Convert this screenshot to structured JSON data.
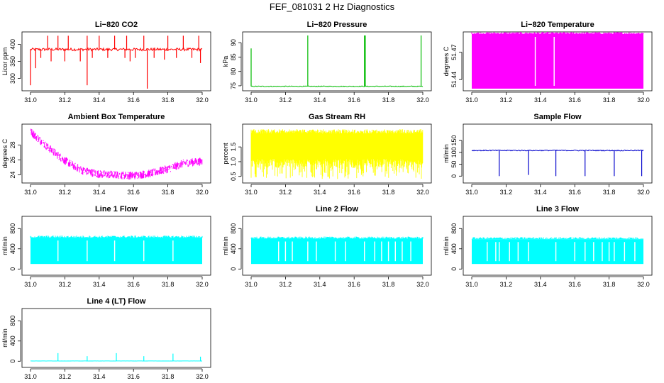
{
  "figure_title": "FEF_081031  2 Hz Diagnostics",
  "chart_data": [
    {
      "type": "line",
      "title": "Li−820 CO2",
      "ylabel": "Licor ppm",
      "color": "#ff0000",
      "xlim": [
        31.0,
        32.0
      ],
      "ylim": [
        270,
        430
      ],
      "xticks": [
        31.0,
        31.2,
        31.4,
        31.6,
        31.8,
        32.0
      ],
      "xtick_labels": [
        "31.0",
        "31.2",
        "31.4",
        "31.6",
        "31.8",
        "32.0"
      ],
      "yticks": [
        300,
        350,
        400
      ],
      "ytick_labels": [
        "300",
        "350",
        "400"
      ],
      "baseline": 385,
      "noise": 4,
      "spikes": [
        [
          31.0,
          280
        ],
        [
          31.03,
          330
        ],
        [
          31.06,
          360
        ],
        [
          31.1,
          425
        ],
        [
          31.12,
          350
        ],
        [
          31.16,
          425
        ],
        [
          31.2,
          350
        ],
        [
          31.22,
          425
        ],
        [
          31.29,
          350
        ],
        [
          31.33,
          425
        ],
        [
          31.33,
          280
        ],
        [
          31.36,
          360
        ],
        [
          31.4,
          425
        ],
        [
          31.45,
          360
        ],
        [
          31.49,
          425
        ],
        [
          31.55,
          360
        ],
        [
          31.56,
          425
        ],
        [
          31.58,
          350
        ],
        [
          31.61,
          360
        ],
        [
          31.66,
          425
        ],
        [
          31.68,
          270
        ],
        [
          31.72,
          360
        ],
        [
          31.78,
          355
        ],
        [
          31.8,
          425
        ],
        [
          31.85,
          360
        ],
        [
          31.89,
          425
        ],
        [
          31.94,
          360
        ],
        [
          31.98,
          425
        ],
        [
          31.99,
          345
        ]
      ]
    },
    {
      "type": "line",
      "title": "Li−820 Pressure",
      "ylabel": "kPa",
      "color": "#00bb00",
      "xlim": [
        31.0,
        32.0
      ],
      "ylim": [
        74,
        93
      ],
      "xticks": [
        31.0,
        31.2,
        31.4,
        31.6,
        31.8,
        32.0
      ],
      "xtick_labels": [
        "31.0",
        "31.2",
        "31.4",
        "31.6",
        "31.8",
        "32.0"
      ],
      "yticks": [
        75,
        80,
        85,
        90
      ],
      "ytick_labels": [
        "75",
        "80",
        "85",
        "90"
      ],
      "baseline": 74.8,
      "noise": 0.15,
      "spikes": [
        [
          31.0,
          88
        ],
        [
          31.33,
          92.5
        ],
        [
          31.66,
          92.5
        ],
        [
          31.665,
          92.5
        ],
        [
          31.99,
          92.5
        ]
      ]
    },
    {
      "type": "line",
      "title": "Li−820 Temperature",
      "ylabel": "degrees C",
      "color": "#ff00ff",
      "xlim": [
        31.0,
        32.0
      ],
      "ylim": [
        51.43,
        51.49
      ],
      "xticks": [
        31.0,
        31.2,
        31.4,
        31.6,
        31.8,
        32.0
      ],
      "xtick_labels": [
        "31.0",
        "31.2",
        "31.4",
        "31.6",
        "31.8",
        "32.0"
      ],
      "yticks": [
        51.44,
        51.47
      ],
      "ytick_labels": [
        "51.44",
        "51.47"
      ],
      "band": [
        51.43,
        51.49
      ],
      "gaps": [
        31.37,
        31.48
      ]
    },
    {
      "type": "line",
      "title": "Ambient Box Temperature",
      "ylabel": "degrees C",
      "color": "#ff00ff",
      "xlim": [
        31.0,
        32.0
      ],
      "ylim": [
        23.2,
        30.5
      ],
      "xticks": [
        31.0,
        31.2,
        31.4,
        31.6,
        31.8,
        32.0
      ],
      "xtick_labels": [
        "31.0",
        "31.2",
        "31.4",
        "31.6",
        "31.8",
        "32.0"
      ],
      "yticks": [
        24,
        26,
        28
      ],
      "ytick_labels": [
        "24",
        "26",
        "28"
      ],
      "trend": [
        [
          31.0,
          29.8
        ],
        [
          31.1,
          27.7
        ],
        [
          31.2,
          25.9
        ],
        [
          31.3,
          24.6
        ],
        [
          31.4,
          24.1
        ],
        [
          31.5,
          24.0
        ],
        [
          31.6,
          23.9
        ],
        [
          31.7,
          24.2
        ],
        [
          31.8,
          24.8
        ],
        [
          31.9,
          25.6
        ],
        [
          32.0,
          25.8
        ]
      ],
      "noise": 0.55
    },
    {
      "type": "line",
      "title": "Gas Stream RH",
      "ylabel": "percent",
      "color": "#ffff00",
      "xlim": [
        31.0,
        32.0
      ],
      "ylim": [
        0.35,
        2.2
      ],
      "xticks": [
        31.0,
        31.2,
        31.4,
        31.6,
        31.8,
        32.0
      ],
      "xtick_labels": [
        "31.0",
        "31.2",
        "31.4",
        "31.6",
        "31.8",
        "32.0"
      ],
      "yticks": [
        0.5,
        1.0,
        1.5
      ],
      "ytick_labels": [
        "0.5",
        "1.0",
        "1.5"
      ],
      "band": [
        0.8,
        2.1
      ],
      "dips_min": 0.4
    },
    {
      "type": "line",
      "title": "Sample Flow",
      "ylabel": "ml/min",
      "color": "#0000cc",
      "xlim": [
        31.0,
        32.0
      ],
      "ylim": [
        -20,
        210
      ],
      "xticks": [
        31.0,
        31.2,
        31.4,
        31.6,
        31.8,
        32.0
      ],
      "xtick_labels": [
        "31.0",
        "31.2",
        "31.4",
        "31.6",
        "31.8",
        "32.0"
      ],
      "yticks": [
        0,
        50,
        100,
        150
      ],
      "ytick_labels": [
        "0",
        "50",
        "100",
        "150"
      ],
      "baseline": 108,
      "noise": 2,
      "spikes": [
        [
          31.16,
          0
        ],
        [
          31.33,
          5
        ],
        [
          31.49,
          0
        ],
        [
          31.66,
          0
        ],
        [
          31.83,
          0
        ],
        [
          31.99,
          0
        ]
      ]
    },
    {
      "type": "line",
      "title": "Line 1 Flow",
      "ylabel": "ml/min",
      "color": "#00ffff",
      "xlim": [
        31.0,
        32.0
      ],
      "ylim": [
        -80,
        1000
      ],
      "xticks": [
        31.0,
        31.2,
        31.4,
        31.6,
        31.8,
        32.0
      ],
      "xtick_labels": [
        "31.0",
        "31.2",
        "31.4",
        "31.6",
        "31.8",
        "32.0"
      ],
      "yticks": [
        0,
        400,
        800
      ],
      "ytick_labels": [
        "0",
        "400",
        "800"
      ],
      "band": [
        100,
        620
      ],
      "gaps": [
        31.16,
        31.33,
        31.49,
        31.66,
        31.83
      ]
    },
    {
      "type": "line",
      "title": "Line 2 Flow",
      "ylabel": "ml/min",
      "color": "#00ffff",
      "xlim": [
        31.0,
        32.0
      ],
      "ylim": [
        -80,
        1000
      ],
      "xticks": [
        31.0,
        31.2,
        31.4,
        31.6,
        31.8,
        32.0
      ],
      "xtick_labels": [
        "31.0",
        "31.2",
        "31.4",
        "31.6",
        "31.8",
        "32.0"
      ],
      "yticks": [
        0,
        400,
        800
      ],
      "ytick_labels": [
        "0",
        "400",
        "800"
      ],
      "band": [
        100,
        600
      ],
      "gaps": [
        31.16,
        31.2,
        31.24,
        31.33,
        31.38,
        31.49,
        31.55,
        31.66,
        31.72,
        31.76,
        31.8,
        31.84,
        31.88,
        31.93
      ]
    },
    {
      "type": "line",
      "title": "Line 3 Flow",
      "ylabel": "ml/min",
      "color": "#00ffff",
      "xlim": [
        31.0,
        32.0
      ],
      "ylim": [
        -80,
        1000
      ],
      "xticks": [
        31.0,
        31.2,
        31.4,
        31.6,
        31.8,
        32.0
      ],
      "xtick_labels": [
        "31.0",
        "31.2",
        "31.4",
        "31.6",
        "31.8",
        "32.0"
      ],
      "yticks": [
        0,
        400,
        800
      ],
      "ytick_labels": [
        "0",
        "400",
        "800"
      ],
      "band": [
        100,
        590
      ],
      "gaps": [
        31.09,
        31.14,
        31.16,
        31.22,
        31.27,
        31.33,
        31.49,
        31.6,
        31.66,
        31.71,
        31.76,
        31.8,
        31.83,
        31.89,
        31.95
      ]
    },
    {
      "type": "line",
      "title": "Line 4 (LT) Flow",
      "ylabel": "ml/min",
      "color": "#00ffff",
      "xlim": [
        31.0,
        32.0
      ],
      "ylim": [
        -80,
        1000
      ],
      "xticks": [
        31.0,
        31.2,
        31.4,
        31.6,
        31.8,
        32.0
      ],
      "xtick_labels": [
        "31.0",
        "31.2",
        "31.4",
        "31.6",
        "31.8",
        "32.0"
      ],
      "yticks": [
        0,
        400,
        800
      ],
      "ytick_labels": [
        "0",
        "400",
        "800"
      ],
      "baseline": 5,
      "noise": 1,
      "spikes": [
        [
          31.16,
          160
        ],
        [
          31.33,
          100
        ],
        [
          31.5,
          160
        ],
        [
          31.66,
          100
        ],
        [
          31.83,
          150
        ],
        [
          31.99,
          90
        ]
      ]
    }
  ]
}
